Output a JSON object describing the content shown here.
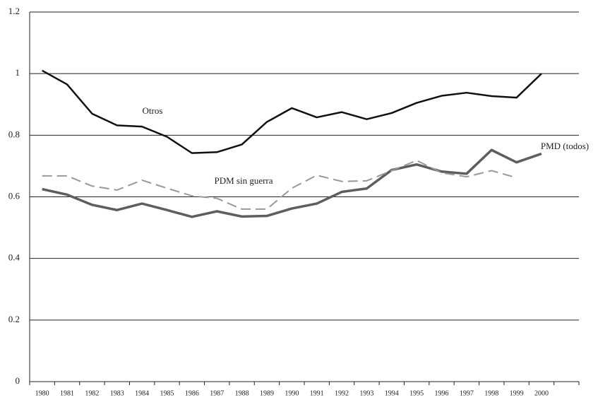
{
  "chart_data": {
    "type": "line",
    "categories": [
      "1980",
      "1981",
      "1982",
      "1983",
      "1984",
      "1985",
      "1986",
      "1987",
      "1988",
      "1989",
      "1990",
      "1991",
      "1992",
      "1993",
      "1994",
      "1995",
      "1996",
      "1997",
      "1998",
      "1999",
      "2000",
      null
    ],
    "series": [
      {
        "name": "Otros",
        "color": "#111111",
        "dashed": false,
        "values": [
          1.01,
          0.965,
          0.87,
          0.832,
          0.828,
          0.795,
          0.742,
          0.745,
          0.77,
          0.843,
          0.888,
          0.858,
          0.875,
          0.852,
          0.872,
          0.905,
          0.928,
          0.938,
          0.927,
          0.922,
          1.0,
          null
        ]
      },
      {
        "name": "PMD (todos)",
        "color": "#5e5e5e",
        "dashed": false,
        "values": [
          0.625,
          0.607,
          0.574,
          0.557,
          0.578,
          0.557,
          0.535,
          0.553,
          0.536,
          0.538,
          0.562,
          0.578,
          0.616,
          0.627,
          0.687,
          0.705,
          0.682,
          0.675,
          0.752,
          0.712,
          0.74,
          null
        ]
      },
      {
        "name": "PDM sin guerra",
        "color": "#999999",
        "dashed": true,
        "values": [
          0.668,
          0.668,
          0.635,
          0.622,
          0.654,
          0.628,
          0.603,
          0.595,
          0.56,
          0.56,
          0.628,
          0.67,
          0.65,
          0.652,
          0.685,
          0.718,
          0.678,
          0.665,
          0.685,
          0.662,
          null,
          null
        ]
      }
    ],
    "ylim": [
      0,
      1.2
    ],
    "yticks": [
      0,
      0.2,
      0.4,
      0.6,
      0.8,
      1,
      1.2
    ],
    "grid": true
  }
}
